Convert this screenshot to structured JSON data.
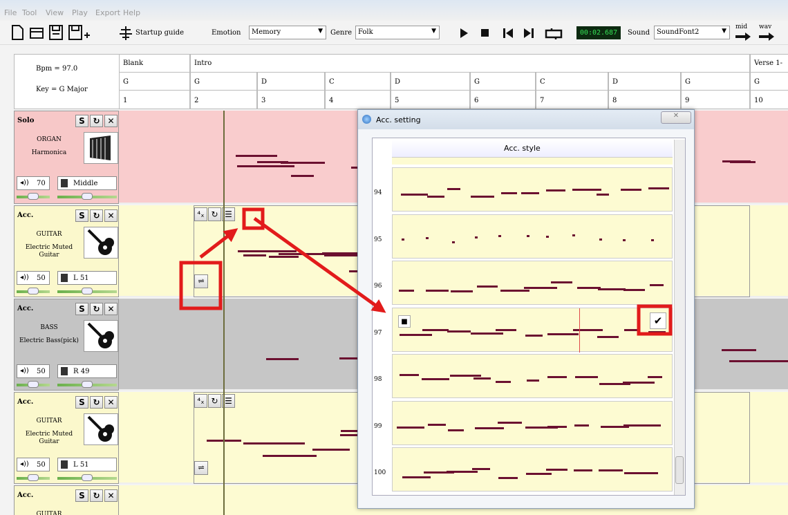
{
  "menu": [
    "File",
    "Tool",
    "View",
    "Play",
    "Export",
    "Help"
  ],
  "toolbar": {
    "startup_guide": "Startup guide",
    "emotion_label": "Emotion",
    "emotion": "Memory",
    "genre_label": "Genre",
    "genre": "Folk",
    "time": "00:02.687",
    "sound_label": "Sound",
    "sound": "SoundFont2",
    "mid": "mid",
    "wav": "wav"
  },
  "header": {
    "bpm": "Bpm = 97.0",
    "key": "Key = G Major",
    "sections": [
      "Blank",
      "Intro",
      "Verse 1-"
    ],
    "chords": [
      "G",
      "G",
      "D",
      "C",
      "D",
      "G",
      "C",
      "D",
      "G",
      "G"
    ],
    "bars": [
      1,
      2,
      3,
      4,
      5,
      6,
      7,
      8,
      9,
      10
    ]
  },
  "tracks": [
    {
      "role": "Solo",
      "instrument": "ORGAN",
      "name": "Harmonica",
      "volume": 70,
      "pan": "Middle"
    },
    {
      "role": "Acc.",
      "instrument": "GUITAR",
      "name": "Electric Muted Guitar",
      "volume": 50,
      "pan": "L 51"
    },
    {
      "role": "Acc.",
      "instrument": "BASS",
      "name": "Electric Bass(pick)",
      "volume": 50,
      "pan": "R 49"
    },
    {
      "role": "Acc.",
      "instrument": "GUITAR",
      "name": "Electric Muted Guitar",
      "volume": 50,
      "pan": "L 51"
    },
    {
      "role": "Acc.",
      "instrument": "GUITAR"
    }
  ],
  "dialog": {
    "title": "Acc. setting",
    "column": "Acc. style",
    "styles": [
      94,
      95,
      96,
      97,
      98,
      99,
      100
    ]
  }
}
